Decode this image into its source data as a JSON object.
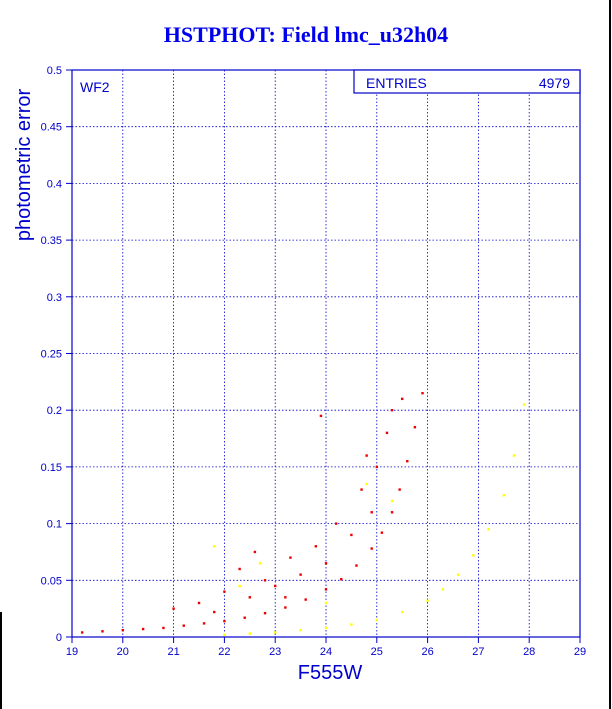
{
  "title": "HSTPHOT: Field lmc_u32h04",
  "panel_label": "WF2",
  "stats_box": {
    "label": "ENTRIES",
    "value": "4979"
  },
  "colors": {
    "axis": "#0000cc",
    "title": "#0000ee",
    "bright_series": "#ee0000",
    "faint_series": "#ffff00"
  },
  "chart_data": {
    "type": "scatter",
    "xlabel": "F555W",
    "ylabel": "photometric error",
    "xlim": [
      19,
      29
    ],
    "ylim": [
      0,
      0.5
    ],
    "x_ticks": [
      "19",
      "20",
      "21",
      "22",
      "23",
      "24",
      "25",
      "26",
      "27",
      "28",
      "29"
    ],
    "y_ticks": [
      "0",
      "0.05",
      "0.1",
      "0.15",
      "0.2",
      "0.25",
      "0.3",
      "0.35",
      "0.4",
      "0.45",
      "0.5"
    ],
    "grid": true,
    "series": [
      {
        "color": "#ee0000",
        "points": [
          [
            19.2,
            0.004
          ],
          [
            19.6,
            0.005
          ],
          [
            20.0,
            0.006
          ],
          [
            20.4,
            0.007
          ],
          [
            20.8,
            0.008
          ],
          [
            21.2,
            0.01
          ],
          [
            21.6,
            0.012
          ],
          [
            22.0,
            0.014
          ],
          [
            22.4,
            0.017
          ],
          [
            22.8,
            0.021
          ],
          [
            23.2,
            0.026
          ],
          [
            23.6,
            0.033
          ],
          [
            24.0,
            0.042
          ],
          [
            24.3,
            0.051
          ],
          [
            24.6,
            0.063
          ],
          [
            24.9,
            0.078
          ],
          [
            25.1,
            0.092
          ],
          [
            25.3,
            0.11
          ],
          [
            25.45,
            0.13
          ],
          [
            25.6,
            0.155
          ],
          [
            25.75,
            0.185
          ],
          [
            25.9,
            0.215
          ],
          [
            21.0,
            0.025
          ],
          [
            21.5,
            0.03
          ],
          [
            22.0,
            0.04
          ],
          [
            22.3,
            0.06
          ],
          [
            22.5,
            0.035
          ],
          [
            22.8,
            0.05
          ],
          [
            23.0,
            0.045
          ],
          [
            23.3,
            0.07
          ],
          [
            23.5,
            0.055
          ],
          [
            23.8,
            0.08
          ],
          [
            24.0,
            0.065
          ],
          [
            24.2,
            0.1
          ],
          [
            24.5,
            0.09
          ],
          [
            24.7,
            0.13
          ],
          [
            24.9,
            0.11
          ],
          [
            25.0,
            0.15
          ],
          [
            25.2,
            0.18
          ],
          [
            25.3,
            0.2
          ],
          [
            25.5,
            0.21
          ],
          [
            23.9,
            0.195
          ],
          [
            24.8,
            0.16
          ],
          [
            22.6,
            0.075
          ],
          [
            23.2,
            0.035
          ],
          [
            21.8,
            0.022
          ]
        ]
      },
      {
        "color": "#ffff00",
        "points": [
          [
            22.0,
            0.002
          ],
          [
            22.5,
            0.003
          ],
          [
            23.0,
            0.004
          ],
          [
            23.5,
            0.006
          ],
          [
            24.0,
            0.008
          ],
          [
            24.5,
            0.011
          ],
          [
            25.0,
            0.015
          ],
          [
            25.5,
            0.022
          ],
          [
            26.0,
            0.032
          ],
          [
            26.3,
            0.042
          ],
          [
            26.6,
            0.055
          ],
          [
            26.9,
            0.072
          ],
          [
            27.2,
            0.095
          ],
          [
            27.5,
            0.125
          ],
          [
            27.7,
            0.16
          ],
          [
            27.9,
            0.205
          ],
          [
            21.8,
            0.08
          ],
          [
            22.7,
            0.065
          ],
          [
            24.8,
            0.135
          ],
          [
            25.3,
            0.12
          ],
          [
            22.3,
            0.045
          ],
          [
            24.0,
            0.03
          ]
        ]
      }
    ]
  }
}
